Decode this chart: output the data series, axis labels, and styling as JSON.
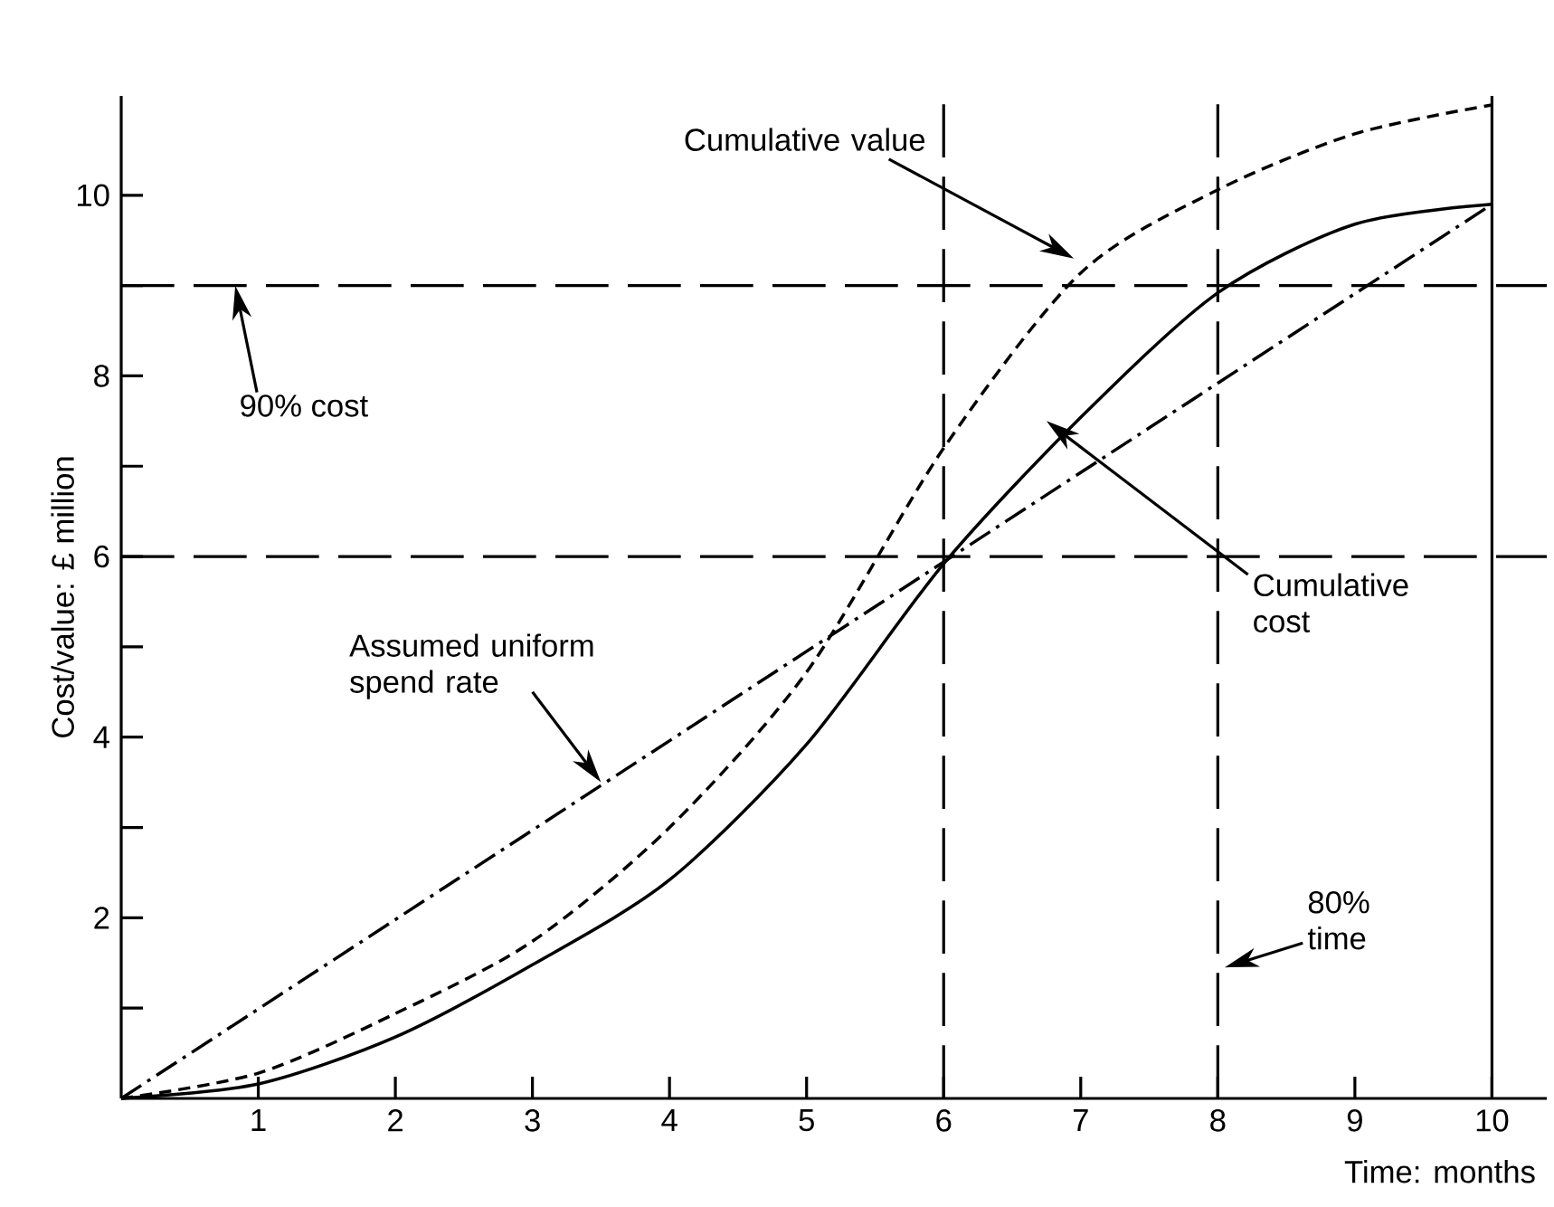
{
  "chart_data": {
    "type": "line",
    "xlabel": "Time: months",
    "ylabel": "Cost/value: £ million",
    "xlim": [
      0,
      10.4
    ],
    "ylim": [
      0,
      11.1
    ],
    "xticks": [
      1,
      2,
      3,
      4,
      5,
      6,
      7,
      8,
      9,
      10
    ],
    "yticks": [
      {
        "value": 1,
        "label": null
      },
      2,
      {
        "value": 3,
        "label": null
      },
      4,
      {
        "value": 5,
        "label": null
      },
      6,
      {
        "value": 7,
        "label": null
      },
      8,
      {
        "value": 9,
        "label": null
      },
      10
    ],
    "grid": false,
    "series": [
      {
        "color": "#000000",
        "line_style": "solid",
        "x": [
          0,
          1,
          2,
          3,
          4,
          5,
          6,
          7,
          8,
          9,
          10
        ],
        "values": [
          0,
          0.16,
          0.68,
          1.48,
          2.42,
          3.92,
          5.92,
          7.54,
          8.92,
          9.68,
          9.9
        ]
      },
      {
        "color": "#000000",
        "line_style": "dashed",
        "x": [
          0,
          1,
          2,
          3,
          4,
          5,
          6,
          7,
          8,
          9,
          10
        ],
        "values": [
          0,
          0.28,
          0.94,
          1.74,
          3.0,
          4.72,
          7.2,
          9.14,
          10.06,
          10.68,
          11.0
        ]
      },
      {
        "color": "#000000",
        "line_style": "dashdot",
        "x": [
          0,
          10
        ],
        "values": [
          0,
          9.9
        ]
      }
    ],
    "ref_lines": [
      {
        "axis": "y",
        "value": 9,
        "color": "#000000",
        "line_style": "dashed",
        "label": "90% cost"
      },
      {
        "axis": "y",
        "value": 6,
        "color": "#000000",
        "line_style": "dashed"
      },
      {
        "axis": "x",
        "value": 6,
        "color": "#000000",
        "line_style": "dashed"
      },
      {
        "axis": "x",
        "value": 8,
        "color": "#000000",
        "line_style": "dashed"
      },
      {
        "axis": "x",
        "value": 10,
        "color": "#000000",
        "line_style": "solid"
      }
    ],
    "annotations": [
      "Cumulative value",
      "Cumulative cost",
      {
        "text": "Assumed uniform spend rate",
        "x": 3.5,
        "y": 3.5
      },
      "80% time"
    ]
  }
}
